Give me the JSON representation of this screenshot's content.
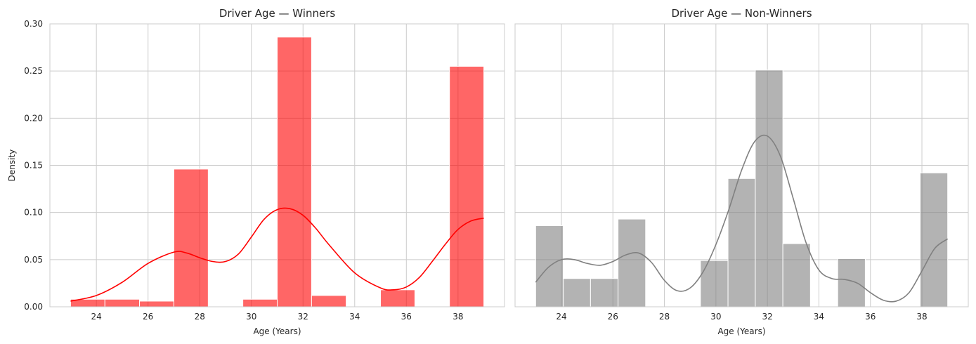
{
  "chart_data": [
    {
      "type": "bar",
      "title": "Driver Age — Winners",
      "xlabel": "Age (Years)",
      "ylabel": "Density",
      "xlim": [
        22.2,
        39.8
      ],
      "ylim": [
        0,
        0.3
      ],
      "xticks": [
        "24",
        "26",
        "28",
        "30",
        "32",
        "34",
        "36",
        "38"
      ],
      "yticks": [
        "0.00",
        "0.05",
        "0.10",
        "0.15",
        "0.20",
        "0.25",
        "0.30"
      ],
      "grid": true,
      "bar_color": "#ff0000",
      "kde_color": "#ff0000",
      "bins": [
        {
          "x0": 23.0,
          "x1": 24.33,
          "value": 0.008
        },
        {
          "x0": 24.33,
          "x1": 25.67,
          "value": 0.008
        },
        {
          "x0": 25.67,
          "x1": 27.0,
          "value": 0.006
        },
        {
          "x0": 27.0,
          "x1": 28.33,
          "value": 0.146
        },
        {
          "x0": 29.67,
          "x1": 31.0,
          "value": 0.008
        },
        {
          "x0": 31.0,
          "x1": 32.33,
          "value": 0.286
        },
        {
          "x0": 32.33,
          "x1": 33.67,
          "value": 0.012
        },
        {
          "x0": 35.0,
          "x1": 36.33,
          "value": 0.018
        },
        {
          "x0": 37.67,
          "x1": 39.0,
          "value": 0.255
        }
      ],
      "kde": {
        "x": [
          23.0,
          24.0,
          25.0,
          26.0,
          27.0,
          27.5,
          28.0,
          28.5,
          29.0,
          29.5,
          30.0,
          30.5,
          31.0,
          31.5,
          32.0,
          32.5,
          33.0,
          34.0,
          35.0,
          35.5,
          36.0,
          36.5,
          37.0,
          37.5,
          38.0,
          38.5,
          39.0
        ],
        "y": [
          0.006,
          0.012,
          0.026,
          0.046,
          0.058,
          0.057,
          0.052,
          0.048,
          0.048,
          0.056,
          0.074,
          0.093,
          0.103,
          0.104,
          0.097,
          0.083,
          0.066,
          0.036,
          0.02,
          0.018,
          0.021,
          0.031,
          0.048,
          0.066,
          0.082,
          0.091,
          0.094
        ]
      }
    },
    {
      "type": "bar",
      "title": "Driver Age — Non-Winners",
      "xlabel": "Age (Years)",
      "ylabel": "",
      "xlim": [
        22.2,
        39.8
      ],
      "ylim": [
        0,
        0.3
      ],
      "xticks": [
        "24",
        "26",
        "28",
        "30",
        "32",
        "34",
        "36",
        "38"
      ],
      "grid": true,
      "bar_color": "#808080",
      "kde_color": "#808080",
      "bins": [
        {
          "x0": 23.0,
          "x1": 24.07,
          "value": 0.086
        },
        {
          "x0": 24.07,
          "x1": 25.13,
          "value": 0.03
        },
        {
          "x0": 25.13,
          "x1": 26.2,
          "value": 0.03
        },
        {
          "x0": 26.2,
          "x1": 27.27,
          "value": 0.093
        },
        {
          "x0": 29.4,
          "x1": 30.47,
          "value": 0.049
        },
        {
          "x0": 30.47,
          "x1": 31.53,
          "value": 0.136
        },
        {
          "x0": 31.53,
          "x1": 32.6,
          "value": 0.251
        },
        {
          "x0": 32.6,
          "x1": 33.67,
          "value": 0.067
        },
        {
          "x0": 34.73,
          "x1": 35.8,
          "value": 0.051
        },
        {
          "x0": 37.93,
          "x1": 39.0,
          "value": 0.142
        }
      ],
      "kde": {
        "x": [
          23.0,
          23.5,
          24.0,
          24.5,
          25.0,
          25.5,
          26.0,
          26.5,
          27.0,
          27.5,
          28.0,
          28.5,
          29.0,
          29.5,
          30.0,
          30.5,
          31.0,
          31.5,
          32.0,
          32.5,
          33.0,
          33.5,
          34.0,
          34.5,
          35.0,
          35.5,
          36.0,
          36.5,
          37.0,
          37.5,
          38.0,
          38.5,
          39.0
        ],
        "y": [
          0.026,
          0.042,
          0.05,
          0.05,
          0.046,
          0.044,
          0.048,
          0.055,
          0.057,
          0.047,
          0.028,
          0.017,
          0.02,
          0.037,
          0.066,
          0.103,
          0.145,
          0.175,
          0.181,
          0.16,
          0.115,
          0.068,
          0.039,
          0.03,
          0.029,
          0.025,
          0.015,
          0.007,
          0.006,
          0.015,
          0.038,
          0.062,
          0.072
        ]
      }
    }
  ]
}
